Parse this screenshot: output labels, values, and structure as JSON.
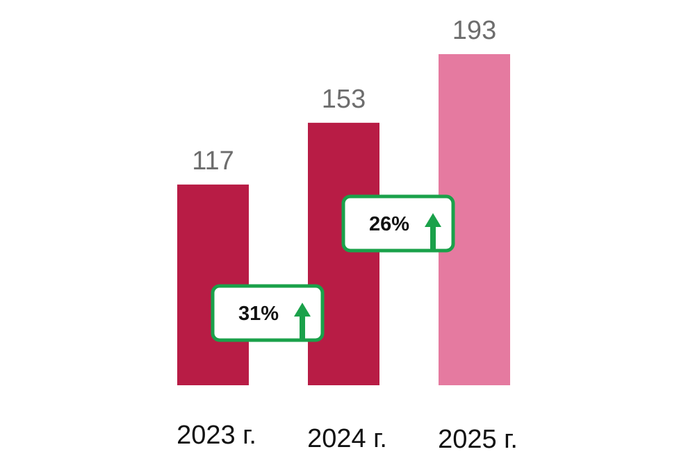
{
  "chart_data": {
    "type": "bar",
    "categories": [
      "2023 г.",
      "2024 г.",
      "2025 г."
    ],
    "values": [
      117,
      153,
      193
    ],
    "title": "",
    "xlabel": "",
    "ylabel": "",
    "ylim": [
      0,
      193
    ],
    "grid": false,
    "legend": "none",
    "colors": [
      "#b81c45",
      "#b81c45",
      "#e57aa0"
    ],
    "annotations": [
      {
        "from": "2023 г.",
        "to": "2024 г.",
        "label": "31%",
        "direction": "up",
        "color": "#1aa14a"
      },
      {
        "from": "2024 г.",
        "to": "2025 г.",
        "label": "26%",
        "direction": "up",
        "color": "#1aa14a"
      }
    ]
  }
}
